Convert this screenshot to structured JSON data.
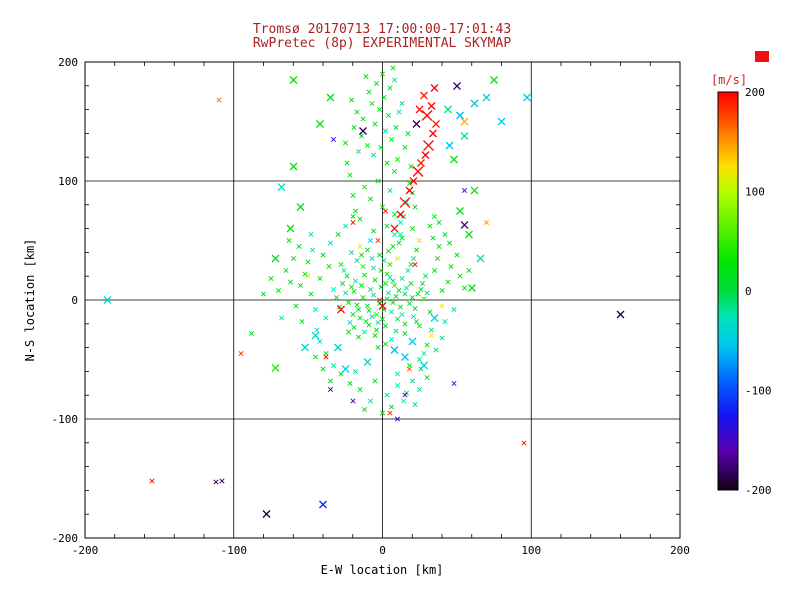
{
  "page": {
    "background": "#ffffff"
  },
  "title": {
    "line1": "Tromsø 20170713 17:00:00-17:01:43",
    "line2": "RwPretec (8p) EXPERIMENTAL SKYMAP",
    "color": "#aa2222"
  },
  "chart_data": {
    "type": "scatter",
    "marker": "x",
    "xlabel": "E-W location [km]",
    "ylabel": "N-S location [km]",
    "xlim": [
      -200,
      200
    ],
    "ylim": [
      -200,
      200
    ],
    "x_ticks": [
      -200,
      -100,
      0,
      100,
      200
    ],
    "y_ticks": [
      -200,
      -100,
      0,
      100,
      200
    ],
    "grid_values": [
      -100,
      0,
      100
    ],
    "minor_tick_step": 20,
    "grid": true,
    "colorbar": {
      "label": "[m/s]",
      "label_color": "#cc2222",
      "corner_marker_color": "#ee1111",
      "ticks": [
        200,
        100,
        0,
        -100,
        -200
      ],
      "min": -200,
      "max": 200
    },
    "colormap_stops": [
      [
        -200,
        "#140016"
      ],
      [
        -160,
        "#5a00b4"
      ],
      [
        -125,
        "#1414f0"
      ],
      [
        -90,
        "#0064ff"
      ],
      [
        -55,
        "#00c8f0"
      ],
      [
        -25,
        "#00e6b4"
      ],
      [
        0,
        "#00dc3c"
      ],
      [
        30,
        "#00e600"
      ],
      [
        60,
        "#50f000"
      ],
      [
        100,
        "#b4ff00"
      ],
      [
        125,
        "#ffe100"
      ],
      [
        150,
        "#ff9600"
      ],
      [
        175,
        "#ff4600"
      ],
      [
        200,
        "#ff0000"
      ]
    ],
    "points_format": [
      "x_km",
      "y_km",
      "velocity_ms",
      "size_class_optional"
    ],
    "points": [
      [
        -2,
        -3,
        10
      ],
      [
        3,
        1,
        25
      ],
      [
        -6,
        4,
        -20
      ],
      [
        1,
        -8,
        15
      ],
      [
        7,
        -2,
        30
      ],
      [
        -10,
        -5,
        5
      ],
      [
        4,
        6,
        -35
      ],
      [
        -1,
        11,
        20
      ],
      [
        9,
        3,
        8
      ],
      [
        -4,
        -12,
        40
      ],
      [
        12,
        -6,
        18
      ],
      [
        -8,
        9,
        -15
      ],
      [
        2,
        14,
        22
      ],
      [
        -13,
        2,
        35
      ],
      [
        6,
        -10,
        -25
      ],
      [
        0,
        -16,
        12
      ],
      [
        -5,
        17,
        28
      ],
      [
        15,
        5,
        -10
      ],
      [
        -17,
        -4,
        15
      ],
      [
        8,
        12,
        45
      ],
      [
        -3,
        -19,
        -30
      ],
      [
        11,
        8,
        20
      ],
      [
        -9,
        -9,
        10
      ],
      [
        5,
        19,
        -18
      ],
      [
        -14,
        12,
        25
      ],
      [
        18,
        -3,
        5
      ],
      [
        -7,
        -14,
        -40
      ],
      [
        3,
        22,
        30
      ],
      [
        -19,
        7,
        15
      ],
      [
        13,
        -12,
        -22
      ],
      [
        -1,
        25,
        38
      ],
      [
        -11,
        -18,
        8
      ],
      [
        7,
        16,
        -12
      ],
      [
        -16,
        -8,
        20
      ],
      [
        20,
        2,
        28
      ],
      [
        -6,
        27,
        -28
      ],
      [
        2,
        -22,
        14
      ],
      [
        -21,
        11,
        35
      ],
      [
        10,
        -16,
        -8
      ],
      [
        -12,
        21,
        18
      ],
      [
        16,
        10,
        -32
      ],
      [
        -4,
        -25,
        25
      ],
      [
        22,
        -7,
        10
      ],
      [
        -18,
        16,
        -20
      ],
      [
        5,
        30,
        40
      ],
      [
        -9,
        -21,
        15
      ],
      [
        13,
        18,
        -15
      ],
      [
        -23,
        -2,
        30
      ],
      [
        1,
        33,
        -25
      ],
      [
        -15,
        -15,
        20
      ],
      [
        19,
        14,
        12
      ],
      [
        -7,
        35,
        -38
      ],
      [
        24,
        5,
        22
      ],
      [
        -20,
        -12,
        18
      ],
      [
        9,
        -26,
        -10
      ],
      [
        -2,
        38,
        28
      ],
      [
        15,
        -20,
        35
      ],
      [
        -25,
        6,
        -18
      ],
      [
        4,
        41,
        15
      ],
      [
        -13,
        28,
        42
      ],
      [
        21,
        -14,
        -28
      ],
      [
        -10,
        42,
        20
      ],
      [
        26,
        9,
        8
      ],
      [
        -22,
        -19,
        -35
      ],
      [
        7,
        45,
        25
      ],
      [
        -27,
        14,
        12
      ],
      [
        17,
        25,
        -20
      ],
      [
        -5,
        -30,
        30
      ],
      [
        23,
        -18,
        18
      ],
      [
        -17,
        33,
        -12
      ],
      [
        28,
        1,
        40
      ],
      [
        -12,
        -27,
        -22
      ],
      [
        11,
        48,
        15
      ],
      [
        -24,
        20,
        25
      ],
      [
        6,
        -33,
        -30
      ],
      [
        -29,
        -6,
        10
      ],
      [
        19,
        30,
        20
      ],
      [
        -8,
        50,
        -40
      ],
      [
        25,
        -22,
        35
      ],
      [
        -19,
        -23,
        14
      ],
      [
        30,
        6,
        -15
      ],
      [
        -14,
        38,
        28
      ],
      [
        2,
        -37,
        22
      ],
      [
        -26,
        25,
        -25
      ],
      [
        13,
        52,
        18
      ],
      [
        -31,
        2,
        32
      ],
      [
        21,
        35,
        -18
      ],
      [
        -3,
        -40,
        12
      ],
      [
        27,
        14,
        24
      ],
      [
        -21,
        40,
        -30
      ],
      [
        32,
        -10,
        16
      ],
      [
        -16,
        -31,
        20
      ],
      [
        8,
        55,
        -22
      ],
      [
        -28,
        30,
        38
      ],
      [
        15,
        -28,
        10
      ],
      [
        -33,
        9,
        -28
      ],
      [
        23,
        42,
        26
      ],
      [
        -6,
        58,
        18
      ],
      [
        29,
        20,
        -12
      ],
      [
        -23,
        -27,
        22
      ],
      [
        35,
        25,
        15
      ],
      [
        -38,
        -15,
        -25
      ],
      [
        40,
        8,
        30
      ],
      [
        -42,
        18,
        12
      ],
      [
        33,
        -25,
        -18
      ],
      [
        -36,
        28,
        25
      ],
      [
        44,
        15,
        8
      ],
      [
        -45,
        -8,
        -32
      ],
      [
        37,
        35,
        20
      ],
      [
        -40,
        38,
        15
      ],
      [
        -48,
        5,
        28
      ],
      [
        42,
        -18,
        -20
      ],
      [
        -52,
        22,
        10
      ],
      [
        46,
        28,
        18
      ],
      [
        -44,
        -25,
        -28
      ],
      [
        38,
        45,
        32
      ],
      [
        -55,
        12,
        15
      ],
      [
        48,
        -8,
        -15
      ],
      [
        -50,
        32,
        22
      ],
      [
        52,
        20,
        10
      ],
      [
        -35,
        48,
        -35
      ],
      [
        30,
        -38,
        18
      ],
      [
        -58,
        -5,
        25
      ],
      [
        34,
        52,
        12
      ],
      [
        -47,
        42,
        -22
      ],
      [
        55,
        10,
        30
      ],
      [
        -62,
        15,
        8
      ],
      [
        28,
        -45,
        -25
      ],
      [
        -54,
        -18,
        15
      ],
      [
        58,
        25,
        20
      ],
      [
        -30,
        55,
        25
      ],
      [
        25,
        -50,
        -18
      ],
      [
        -65,
        25,
        12
      ],
      [
        20,
        60,
        35
      ],
      [
        -42,
        -35,
        -28
      ],
      [
        50,
        38,
        15
      ],
      [
        -70,
        8,
        22
      ],
      [
        36,
        -42,
        -12
      ],
      [
        -60,
        35,
        18
      ],
      [
        45,
        48,
        28
      ],
      [
        -25,
        62,
        -20
      ],
      [
        18,
        -55,
        15
      ],
      [
        -75,
        18,
        30
      ],
      [
        12,
        65,
        -25
      ],
      [
        -38,
        -45,
        20
      ],
      [
        42,
        55,
        10
      ],
      [
        -68,
        -15,
        -30
      ],
      [
        32,
        62,
        25
      ],
      [
        -56,
        45,
        12
      ],
      [
        40,
        -32,
        -15
      ],
      [
        -20,
        70,
        22
      ],
      [
        10,
        -62,
        -28
      ],
      [
        -80,
        5,
        15
      ],
      [
        8,
        72,
        28
      ],
      [
        -33,
        -55,
        -20
      ],
      [
        38,
        65,
        18
      ],
      [
        -63,
        50,
        25
      ],
      [
        26,
        -58,
        12
      ],
      [
        -48,
        55,
        -25
      ],
      [
        35,
        70,
        20
      ],
      [
        -5,
        -68,
        15
      ],
      [
        10,
        -72,
        -22
      ],
      [
        -15,
        -75,
        25
      ],
      [
        3,
        -80,
        -15
      ],
      [
        -22,
        -70,
        18
      ],
      [
        16,
        -78,
        10
      ],
      [
        -8,
        -85,
        -28
      ],
      [
        6,
        -90,
        20
      ],
      [
        -28,
        -62,
        12
      ],
      [
        20,
        -68,
        -18
      ],
      [
        -35,
        -68,
        22
      ],
      [
        25,
        -75,
        -12
      ],
      [
        -12,
        -92,
        15
      ],
      [
        14,
        -85,
        -25
      ],
      [
        -40,
        -58,
        18
      ],
      [
        30,
        -65,
        10
      ],
      [
        -18,
        -60,
        -20
      ],
      [
        0,
        -95,
        25
      ],
      [
        -45,
        -48,
        15
      ],
      [
        22,
        -88,
        -15
      ],
      [
        0,
        78,
        35
      ],
      [
        -8,
        85,
        20
      ],
      [
        5,
        92,
        -15
      ],
      [
        -3,
        100,
        28
      ],
      [
        8,
        108,
        15
      ],
      [
        -12,
        95,
        40
      ],
      [
        3,
        115,
        22
      ],
      [
        -6,
        122,
        -20
      ],
      [
        10,
        118,
        30
      ],
      [
        -1,
        128,
        18
      ],
      [
        6,
        135,
        25
      ],
      [
        -10,
        130,
        15
      ],
      [
        2,
        142,
        -18
      ],
      [
        -5,
        148,
        32
      ],
      [
        9,
        145,
        20
      ],
      [
        -14,
        138,
        10
      ],
      [
        4,
        155,
        28
      ],
      [
        -2,
        160,
        15
      ],
      [
        11,
        158,
        -22
      ],
      [
        -7,
        165,
        35
      ],
      [
        1,
        170,
        20
      ],
      [
        -9,
        175,
        28
      ],
      [
        5,
        178,
        12
      ],
      [
        -4,
        182,
        25
      ],
      [
        8,
        185,
        -15
      ],
      [
        0,
        190,
        30
      ],
      [
        -11,
        188,
        18
      ],
      [
        3,
        62,
        22
      ],
      [
        -15,
        68,
        15
      ],
      [
        12,
        55,
        -20
      ],
      [
        -18,
        75,
        25
      ],
      [
        14,
        70,
        18
      ],
      [
        -20,
        88,
        12
      ],
      [
        16,
        82,
        -25
      ],
      [
        -22,
        105,
        20
      ],
      [
        18,
        98,
        28
      ],
      [
        -24,
        115,
        15
      ],
      [
        20,
        90,
        22
      ],
      [
        -16,
        125,
        -18
      ],
      [
        22,
        78,
        30
      ],
      [
        -19,
        145,
        20
      ],
      [
        15,
        128,
        15
      ],
      [
        -13,
        152,
        25
      ],
      [
        13,
        165,
        -12
      ],
      [
        -17,
        158,
        18
      ],
      [
        7,
        195,
        28
      ],
      [
        -21,
        168,
        22
      ],
      [
        17,
        140,
        12
      ],
      [
        -25,
        132,
        30
      ],
      [
        19,
        112,
        18
      ],
      [
        -60,
        112,
        30,
        2
      ],
      [
        -42,
        148,
        25,
        2
      ],
      [
        55,
        138,
        -20,
        2
      ],
      [
        62,
        92,
        35,
        2
      ],
      [
        -55,
        78,
        20,
        2
      ],
      [
        48,
        118,
        15,
        2
      ],
      [
        -68,
        95,
        -25,
        2
      ],
      [
        58,
        55,
        28,
        2
      ],
      [
        -35,
        170,
        22,
        2
      ],
      [
        44,
        160,
        -15,
        2
      ],
      [
        52,
        75,
        18,
        2
      ],
      [
        -62,
        60,
        25,
        2
      ],
      [
        66,
        35,
        -20,
        2
      ],
      [
        -72,
        35,
        15,
        2
      ],
      [
        60,
        10,
        22,
        2
      ],
      [
        -60,
        185,
        28,
        2
      ],
      [
        -30,
        -40,
        -45,
        2
      ],
      [
        20,
        -35,
        -50,
        2
      ],
      [
        -10,
        -52,
        -40,
        2
      ],
      [
        35,
        -15,
        -45,
        2
      ],
      [
        -45,
        -30,
        -38,
        2
      ],
      [
        15,
        -48,
        -55,
        2
      ],
      [
        28,
        -55,
        -42,
        2
      ],
      [
        -25,
        -58,
        -48,
        2
      ],
      [
        8,
        -42,
        -60,
        2
      ],
      [
        -52,
        -40,
        -42,
        2
      ],
      [
        8,
        60,
        195,
        2
      ],
      [
        12,
        72,
        200,
        2
      ],
      [
        15,
        82,
        190,
        3
      ],
      [
        18,
        92,
        200,
        2
      ],
      [
        21,
        100,
        195,
        2
      ],
      [
        24,
        108,
        200,
        3
      ],
      [
        26,
        115,
        190,
        2
      ],
      [
        29,
        122,
        200,
        2
      ],
      [
        31,
        130,
        195,
        3
      ],
      [
        34,
        140,
        200,
        2
      ],
      [
        36,
        148,
        190,
        2
      ],
      [
        30,
        155,
        200,
        3
      ],
      [
        25,
        160,
        195,
        2
      ],
      [
        33,
        163,
        200,
        2
      ],
      [
        28,
        172,
        190,
        2
      ],
      [
        35,
        178,
        200,
        2
      ],
      [
        0,
        -5,
        200,
        2
      ],
      [
        -2,
        0,
        190
      ],
      [
        -28,
        -8,
        195,
        2
      ],
      [
        18,
        -58,
        170
      ],
      [
        5,
        -95,
        185
      ],
      [
        -20,
        65,
        195
      ],
      [
        -38,
        -48,
        200
      ],
      [
        2,
        75,
        190
      ],
      [
        -3,
        50,
        185
      ],
      [
        22,
        30,
        195
      ],
      [
        40,
        -5,
        120
      ],
      [
        -15,
        45,
        110
      ],
      [
        25,
        50,
        130
      ],
      [
        -50,
        20,
        105
      ],
      [
        10,
        35,
        115
      ],
      [
        55,
        150,
        140,
        2
      ],
      [
        70,
        65,
        150
      ],
      [
        -110,
        168,
        160
      ],
      [
        33,
        -30,
        125
      ],
      [
        160,
        -12,
        -190,
        2
      ],
      [
        -13,
        142,
        -185,
        2
      ],
      [
        -40,
        -172,
        -120,
        2
      ],
      [
        55,
        63,
        -170,
        2
      ],
      [
        -78,
        -180,
        -195,
        2
      ],
      [
        -108,
        -152,
        -180
      ],
      [
        15,
        -80,
        -150
      ],
      [
        -20,
        -85,
        -160
      ],
      [
        55,
        92,
        -140
      ],
      [
        -33,
        135,
        -130
      ],
      [
        23,
        148,
        -185,
        2
      ],
      [
        50,
        180,
        -175,
        2
      ],
      [
        -35,
        -75,
        -165
      ],
      [
        48,
        -70,
        -110
      ],
      [
        10,
        -100,
        -125
      ],
      [
        52,
        155,
        -60,
        2
      ],
      [
        62,
        165,
        -55,
        2
      ],
      [
        70,
        170,
        -48,
        2
      ],
      [
        97,
        170,
        -45,
        2
      ],
      [
        75,
        185,
        28,
        2
      ],
      [
        45,
        130,
        -58,
        2
      ],
      [
        80,
        150,
        -52,
        2
      ],
      [
        -185,
        0,
        -40,
        2
      ],
      [
        -95,
        -45,
        180
      ],
      [
        -72,
        -57,
        40,
        2
      ],
      [
        95,
        -120,
        190
      ],
      [
        -155,
        -152,
        195
      ],
      [
        -112,
        -153,
        -190
      ],
      [
        -88,
        -28,
        18
      ]
    ]
  }
}
